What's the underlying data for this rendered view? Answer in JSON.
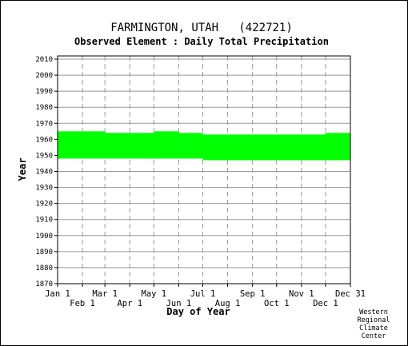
{
  "chart_data": {
    "type": "bar",
    "title": "FARMINGTON, UTAH   (422721)",
    "subtitle": "Observed Element : Daily Total Precipitation",
    "xlabel": "Day of Year",
    "ylabel": "Year",
    "xlim": [
      1,
      366
    ],
    "ylim": [
      1870,
      2012
    ],
    "y_ticks": [
      1870,
      1880,
      1890,
      1900,
      1910,
      1920,
      1930,
      1940,
      1950,
      1960,
      1970,
      1980,
      1990,
      2000,
      2010
    ],
    "x_ticks_upper": [
      {
        "label": "Jan 1",
        "day": 1
      },
      {
        "label": "Mar 1",
        "day": 60
      },
      {
        "label": "May 1",
        "day": 121
      },
      {
        "label": "Jul 1",
        "day": 182
      },
      {
        "label": "Sep 1",
        "day": 244
      },
      {
        "label": "Nov 1",
        "day": 305
      },
      {
        "label": "Dec 31",
        "day": 366
      }
    ],
    "x_ticks_lower": [
      {
        "label": "Feb 1",
        "day": 32
      },
      {
        "label": "Apr 1",
        "day": 91
      },
      {
        "label": "Jun 1",
        "day": 152
      },
      {
        "label": "Aug 1",
        "day": 213
      },
      {
        "label": "Oct 1",
        "day": 274
      },
      {
        "label": "Dec 1",
        "day": 335
      }
    ],
    "grid": true,
    "record_color": "#00ff00",
    "records": [
      {
        "day_start": 1,
        "day_end": 60,
        "year_start": 1948,
        "year_end": 1965
      },
      {
        "day_start": 60,
        "day_end": 121,
        "year_start": 1948,
        "year_end": 1964
      },
      {
        "day_start": 121,
        "day_end": 152,
        "year_start": 1948,
        "year_end": 1965
      },
      {
        "day_start": 152,
        "day_end": 182,
        "year_start": 1948,
        "year_end": 1964
      },
      {
        "day_start": 182,
        "day_end": 335,
        "year_start": 1947,
        "year_end": 1963
      },
      {
        "day_start": 335,
        "day_end": 366,
        "year_start": 1947,
        "year_end": 1964
      }
    ]
  },
  "credit": [
    "Western",
    "Regional",
    "Climate",
    "Center"
  ]
}
